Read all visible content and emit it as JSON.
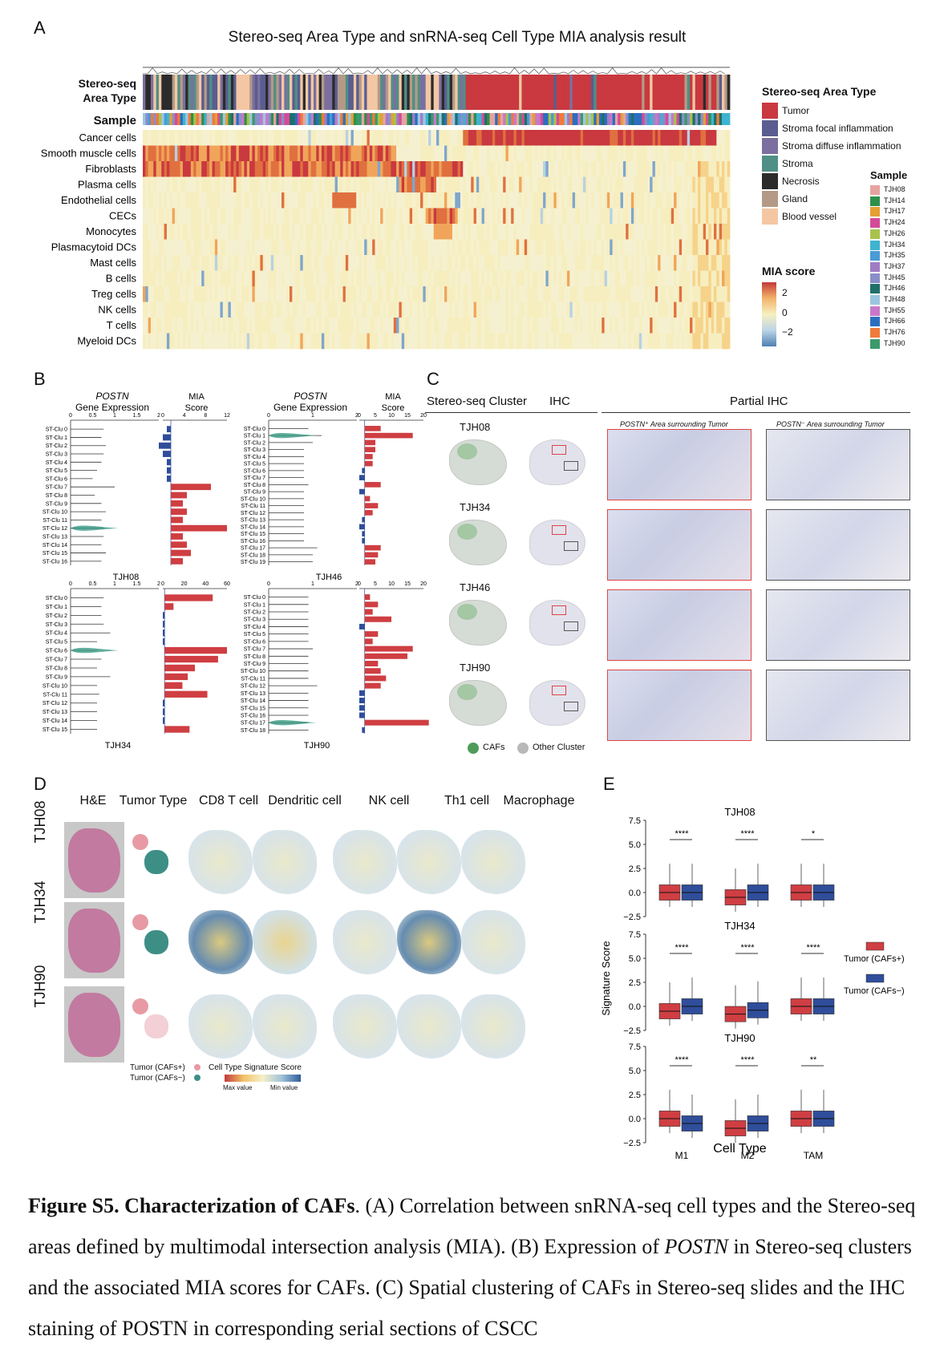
{
  "panelA": {
    "letter": "A",
    "title": "Stereo-seq Area Type and snRNA-seq Cell Type MIA analysis result",
    "row_label_area": "Stereo-seq\nArea Type",
    "row_label_sample": "Sample",
    "cell_types": [
      "Cancer cells",
      "Smooth muscle cells",
      "Fibroblasts",
      "Plasma cells",
      "Endothelial cells",
      "CECs",
      "Monocytes",
      "Plasmacytoid DCs",
      "Mast cells",
      "B cells",
      "Treg cells",
      "NK cells",
      "T cells",
      "Myeloid DCs"
    ],
    "area_legend_title": "Stereo-seq Area Type",
    "area_legend": [
      {
        "label": "Tumor",
        "color": "#c9393f"
      },
      {
        "label": "Stroma focal inflammation",
        "color": "#5a5d8f"
      },
      {
        "label": "Stroma diffuse inflammation",
        "color": "#7c6f9f"
      },
      {
        "label": "Stroma",
        "color": "#4f8f86"
      },
      {
        "label": "Necrosis",
        "color": "#2b2b2b"
      },
      {
        "label": "Gland",
        "color": "#b49a86"
      },
      {
        "label": "Blood vessel",
        "color": "#f3c7a4"
      }
    ],
    "sample_legend_title": "Sample",
    "sample_legend": [
      {
        "label": "TJH08",
        "color": "#e6a3a0"
      },
      {
        "label": "TJH14",
        "color": "#2f8f4a"
      },
      {
        "label": "TJH17",
        "color": "#e59f33"
      },
      {
        "label": "TJH24",
        "color": "#d44b97"
      },
      {
        "label": "TJH26",
        "color": "#a9c24b"
      },
      {
        "label": "TJH34",
        "color": "#3fb3d0"
      },
      {
        "label": "TJH35",
        "color": "#4a9bd6"
      },
      {
        "label": "TJH37",
        "color": "#a07cc4"
      },
      {
        "label": "TJH45",
        "color": "#8a8fc9"
      },
      {
        "label": "TJH46",
        "color": "#1f6f6a"
      },
      {
        "label": "TJH48",
        "color": "#9cc6e0"
      },
      {
        "label": "TJH55",
        "color": "#c779c9"
      },
      {
        "label": "TJH66",
        "color": "#2a6fbf"
      },
      {
        "label": "TJH76",
        "color": "#f07a3a"
      },
      {
        "label": "TJH90",
        "color": "#3a9a6a"
      }
    ],
    "mia_title": "MIA score",
    "mia_ticks": [
      "2",
      "0",
      "−2"
    ]
  },
  "panelB": {
    "letter": "B",
    "gene_header": "POSTN",
    "gene_sub": "Gene Expression",
    "mia_header": "MIA",
    "mia_sub": "Score",
    "samples": [
      {
        "name": "TJH08",
        "gx_ticks": [
          "0",
          "0.5",
          "1",
          "1.5",
          "2"
        ],
        "mia_ticks": [
          "0",
          "4",
          "8",
          "12"
        ],
        "clusters": [
          "ST-Clu 0",
          "ST-Clu 1",
          "ST-Clu 2",
          "ST-Clu 3",
          "ST-Clu 4",
          "ST-Clu 5",
          "ST-Clu 6",
          "ST-Clu 7",
          "ST-Clu 8",
          "ST-Clu 9",
          "ST-Clu 10",
          "ST-Clu 11",
          "ST-Clu 12",
          "ST-Clu 13",
          "ST-Clu 14",
          "ST-Clu 15",
          "ST-Clu 16"
        ],
        "gene": [
          0.75,
          0.7,
          0.8,
          0.75,
          0.7,
          0.6,
          0.5,
          1.0,
          0.55,
          0.7,
          0.8,
          0.7,
          0.75,
          0.75,
          0.7,
          0.8,
          0.7
        ],
        "mia": [
          -1,
          -2,
          -3,
          -2,
          -1,
          -1,
          -1,
          10,
          4,
          3,
          4,
          3,
          14,
          3,
          4,
          5,
          3
        ]
      },
      {
        "name": "TJH46",
        "gx_ticks": [
          "0",
          "1",
          "2"
        ],
        "mia_ticks": [
          "0",
          "5",
          "10",
          "15",
          "20"
        ],
        "clusters": [
          "ST-Clu 0",
          "ST-Clu 1",
          "ST-Clu 2",
          "ST-Clu 3",
          "ST-Clu 4",
          "ST-Clu 5",
          "ST-Clu 6",
          "ST-Clu 7",
          "ST-Clu 8",
          "ST-Clu 9",
          "ST-Clu 10",
          "ST-Clu 11",
          "ST-Clu 12",
          "ST-Clu 13",
          "ST-Clu 14",
          "ST-Clu 15",
          "ST-Clu 16",
          "ST-Clu 17",
          "ST-Clu 18",
          "ST-Clu 19"
        ],
        "gene": [
          0.9,
          1.2,
          1.0,
          0.8,
          0.8,
          0.8,
          0.8,
          0.8,
          0.9,
          0.8,
          0.8,
          0.8,
          0.8,
          0.8,
          0.8,
          0.8,
          0.8,
          1.1,
          1.0,
          1.0
        ],
        "mia": [
          6,
          18,
          4,
          4,
          3,
          3,
          -1,
          -2,
          6,
          -2,
          2,
          5,
          3,
          -1,
          -2,
          -1,
          -1,
          6,
          5,
          4
        ]
      },
      {
        "name": "TJH34",
        "gx_ticks": [
          "0",
          "0.5",
          "1",
          "1.5",
          "2"
        ],
        "mia_ticks": [
          "0",
          "20",
          "40",
          "60"
        ],
        "clusters": [
          "ST-Clu 0",
          "ST-Clu 1",
          "ST-Clu 2",
          "ST-Clu 3",
          "ST-Clu 4",
          "ST-Clu 5",
          "ST-Clu 6",
          "ST-Clu 7",
          "ST-Clu 8",
          "ST-Clu 9",
          "ST-Clu 10",
          "ST-Clu 11",
          "ST-Clu 12",
          "ST-Clu 13",
          "ST-Clu 14",
          "ST-Clu 15"
        ],
        "gene": [
          0.75,
          0.7,
          0.7,
          0.75,
          0.9,
          0.6,
          0.6,
          0.7,
          0.6,
          0.9,
          0.6,
          0.65,
          0.6,
          0.6,
          0.6,
          0.6
        ],
        "mia": [
          54,
          10,
          -2,
          -2,
          -2,
          -2,
          70,
          60,
          34,
          26,
          20,
          48,
          -2,
          -2,
          -2,
          28
        ]
      },
      {
        "name": "TJH90",
        "gx_ticks": [
          "0",
          "1",
          "2"
        ],
        "mia_ticks": [
          "0",
          "5",
          "10",
          "15",
          "20"
        ],
        "clusters": [
          "ST-Clu 0",
          "ST-Clu 1",
          "ST-Clu 2",
          "ST-Clu 3",
          "ST-Clu 4",
          "ST-Clu 5",
          "ST-Clu 6",
          "ST-Clu 7",
          "ST-Clu 8",
          "ST-Clu 9",
          "ST-Clu 10",
          "ST-Clu 11",
          "ST-Clu 12",
          "ST-Clu 13",
          "ST-Clu 14",
          "ST-Clu 15",
          "ST-Clu 16",
          "ST-Clu 17",
          "ST-Clu 18"
        ],
        "gene": [
          0.9,
          0.9,
          0.9,
          0.9,
          0.9,
          0.9,
          0.9,
          1.0,
          0.9,
          0.9,
          0.9,
          0.9,
          1.1,
          0.9,
          0.9,
          0.9,
          0.9,
          0.9,
          0.9
        ],
        "mia": [
          2,
          5,
          3,
          10,
          -2,
          5,
          3,
          18,
          16,
          5,
          6,
          8,
          6,
          -2,
          -2,
          -2,
          -2,
          24,
          -1
        ]
      }
    ]
  },
  "panelC": {
    "letter": "C",
    "hdr_cluster": "Stereo-seq Cluster",
    "hdr_ihc": "IHC",
    "hdr_partial": "Partial IHC",
    "sub_pos": "POSTN⁺ Area surrounding Tumor",
    "sub_neg": "POSTN⁻ Area surrounding Tumor",
    "samples": [
      "TJH08",
      "TJH34",
      "TJH46",
      "TJH90"
    ],
    "legend_cafs": "CAFs",
    "legend_other": "Other Cluster"
  },
  "panelD": {
    "letter": "D",
    "columns": [
      "H&E",
      "Tumor Type",
      "CD8 T cell",
      "Dendritic cell",
      "NK cell",
      "Th1 cell",
      "Macrophage"
    ],
    "rows": [
      "TJH08",
      "TJH34",
      "TJH90"
    ],
    "legend_pos": "Tumor (CAFs+)",
    "legend_neg": "Tumor (CAFs−)",
    "legend_score": "Cell Type Signature Score",
    "legend_max": "Max value",
    "legend_min": "Min value"
  },
  "panelE": {
    "letter": "E",
    "ylabel": "Signature Score",
    "xlabel": "Cell Type",
    "legend": [
      {
        "label": "Tumor (CAFs+)",
        "color": "#cf3e42"
      },
      {
        "label": "Tumor (CAFs−)",
        "color": "#2f4d9a"
      }
    ],
    "chart_data": [
      {
        "type": "box",
        "title": "TJH08",
        "categories": [
          "M1",
          "M2",
          "TAM"
        ],
        "ylim": [
          -2.5,
          7.5
        ],
        "yticks": [
          "7.5",
          "5.0",
          "2.5",
          "0.0",
          "−2.5"
        ],
        "series": [
          {
            "name": "Tumor (CAFs+)",
            "median": [
              0.0,
              -0.5,
              0.0
            ]
          },
          {
            "name": "Tumor (CAFs−)",
            "median": [
              0.0,
              0.0,
              0.0
            ]
          }
        ],
        "significance": [
          "****",
          "****",
          "*"
        ]
      },
      {
        "type": "box",
        "title": "TJH34",
        "categories": [
          "M1",
          "M2",
          "TAM"
        ],
        "ylim": [
          -2.5,
          7.5
        ],
        "yticks": [
          "7.5",
          "5.0",
          "2.5",
          "0.0",
          "−2.5"
        ],
        "series": [
          {
            "name": "Tumor (CAFs+)",
            "median": [
              -0.5,
              -0.8,
              0.0
            ]
          },
          {
            "name": "Tumor (CAFs−)",
            "median": [
              0.0,
              -0.4,
              0.0
            ]
          }
        ],
        "significance": [
          "****",
          "****",
          "****"
        ]
      },
      {
        "type": "box",
        "title": "TJH90",
        "categories": [
          "M1",
          "M2",
          "TAM"
        ],
        "ylim": [
          -2.5,
          7.5
        ],
        "yticks": [
          "7.5",
          "5.0",
          "2.5",
          "0.0",
          "−2.5"
        ],
        "series": [
          {
            "name": "Tumor (CAFs+)",
            "median": [
              0.0,
              -1.0,
              0.0
            ]
          },
          {
            "name": "Tumor (CAFs−)",
            "median": [
              -0.5,
              -0.5,
              0.0
            ]
          }
        ],
        "significance": [
          "****",
          "****",
          "**"
        ]
      }
    ]
  },
  "caption": {
    "bold": "Figure S5. Characterization of CAFs",
    "t1": ". (A) Correlation between snRNA-seq cell types and the Stereo-seq areas defined by multimodal intersection analysis (MIA). (B) Expression of ",
    "gene": "POSTN",
    "t2": " in Stereo-seq clusters and the associated MIA scores for CAFs. (C) Spatial clustering of CAFs in Stereo-seq slides and the IHC staining of POSTN in corresponding serial sections of CSCC"
  }
}
